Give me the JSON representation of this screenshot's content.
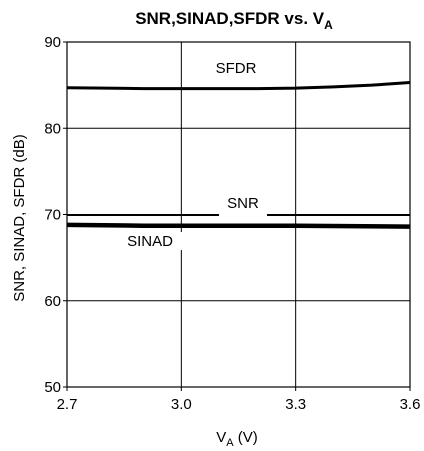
{
  "chart_data": {
    "type": "line",
    "title_main": "SNR,SINAD,SFDR vs. V",
    "title_sub": "A",
    "ylabel": "SNR, SINAD, SFDR (dB)",
    "xlabel_main": "V",
    "xlabel_sub": "A",
    "xlabel_unit": " (V)",
    "xlim": [
      2.7,
      3.6
    ],
    "ylim": [
      50,
      90
    ],
    "xticks": [
      2.7,
      3.0,
      3.3,
      3.6
    ],
    "xtick_labels": [
      "2.7",
      "3.0",
      "3.3",
      "3.6"
    ],
    "yticks": [
      50,
      60,
      70,
      80,
      90
    ],
    "ytick_labels": [
      "50",
      "60",
      "70",
      "80",
      "90"
    ],
    "grid": true,
    "series": [
      {
        "name": "SFDR",
        "color": "#000000",
        "x": [
          2.7,
          2.8,
          2.9,
          3.0,
          3.1,
          3.2,
          3.3,
          3.4,
          3.5,
          3.6
        ],
        "y": [
          84.7,
          84.65,
          84.6,
          84.6,
          84.6,
          84.6,
          84.65,
          84.8,
          85.0,
          85.3
        ]
      },
      {
        "name": "SNR",
        "color": "#000000",
        "x": [
          2.7,
          3.0,
          3.3,
          3.6
        ],
        "y": [
          69.9,
          69.9,
          69.9,
          69.9
        ]
      },
      {
        "name": "SINAD",
        "color": "#000000",
        "x": [
          2.7,
          2.9,
          3.0,
          3.3,
          3.6
        ],
        "y": [
          68.8,
          68.7,
          68.7,
          68.7,
          68.6
        ]
      }
    ]
  }
}
